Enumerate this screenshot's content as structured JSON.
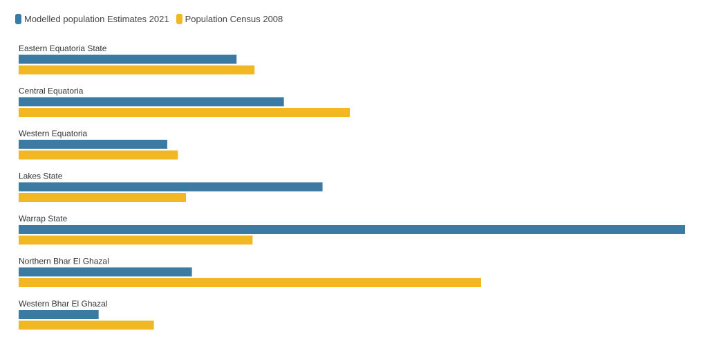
{
  "legend": {
    "items": [
      {
        "label": "Modelled population Estimates 2021",
        "color": "#3a7aa3"
      },
      {
        "label": "Population Census 2008",
        "color": "#f2b824"
      }
    ]
  },
  "chart_data": {
    "type": "bar",
    "orientation": "horizontal",
    "categories": [
      "Eastern Equatoria State",
      "Central Equatoria",
      "Western Equatoria",
      "Lakes State",
      "Warrap State",
      "Northern Bhar El Ghazal",
      "Western Bhar El Ghazal"
    ],
    "series": [
      {
        "name": "Modelled population Estimates 2021",
        "color": "#3a7aa3",
        "values": [
          32.7,
          39.8,
          22.3,
          45.6,
          100.0,
          26.0,
          12.0
        ]
      },
      {
        "name": "Population Census 2008",
        "color": "#f2b824",
        "values": [
          35.4,
          49.7,
          23.9,
          25.1,
          35.1,
          69.4,
          20.3
        ]
      }
    ],
    "value_unit": "relative scale (no axis shown)",
    "xlim": [
      0,
      100
    ],
    "grid": false,
    "legend_position": "top-left"
  }
}
